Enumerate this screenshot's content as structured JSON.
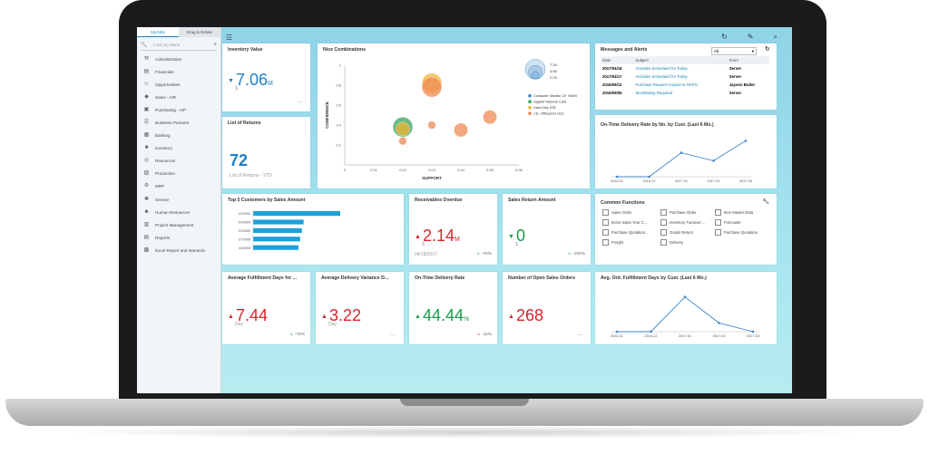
{
  "sidebar": {
    "tabs": [
      "MyJobs",
      "Drag & Relate"
    ],
    "search_placeholder": "Look Up Menu",
    "items": [
      {
        "label": "Administration",
        "icon": "wrench-icon"
      },
      {
        "label": "Financials",
        "icon": "chart-icon"
      },
      {
        "label": "Opportunities",
        "icon": "people-icon"
      },
      {
        "label": "Sales - A/R",
        "icon": "tag-icon"
      },
      {
        "label": "Purchasing - A/P",
        "icon": "cart-icon"
      },
      {
        "label": "Business Partners",
        "icon": "partners-icon"
      },
      {
        "label": "Banking",
        "icon": "bank-icon"
      },
      {
        "label": "Inventory",
        "icon": "box-icon"
      },
      {
        "label": "Resources",
        "icon": "resource-icon"
      },
      {
        "label": "Production",
        "icon": "factory-icon"
      },
      {
        "label": "MRP",
        "icon": "mrp-icon"
      },
      {
        "label": "Service",
        "icon": "service-icon"
      },
      {
        "label": "Human Resources",
        "icon": "hr-icon"
      },
      {
        "label": "Project Management",
        "icon": "project-icon"
      },
      {
        "label": "Reports",
        "icon": "report-icon"
      },
      {
        "label": "Excel Report and Interactiv",
        "icon": "excel-icon"
      }
    ]
  },
  "inventory": {
    "title": "Inventory Value",
    "value": "7.06",
    "unit": "M",
    "currency": "$",
    "dash": "----"
  },
  "returns": {
    "title": "List of Returns",
    "value": "72",
    "sub": "List of Returns - YTD"
  },
  "nice": {
    "title": "Nice Combinations",
    "xlabel": "SUPPORT",
    "ylabel": "CONFIDENCE",
    "size_labels": [
      "7.29",
      "4.65",
      "2.03"
    ],
    "legend": [
      {
        "name": "Computer Monitor 24\" HDMI",
        "color": "#3f86c9"
      },
      {
        "name": "Gigabit Network Card",
        "color": "#3aa35c"
      },
      {
        "name": "Hard Disk 3TB",
        "color": "#f2b234"
      },
      {
        "name": "J.B. Officeprint 1111",
        "color": "#ee8a53"
      }
    ]
  },
  "messages": {
    "title": "Messages and Alerts",
    "filter": "All",
    "headers": [
      "Date",
      "Subject",
      "From"
    ],
    "rows": [
      {
        "date": "2017/04/18",
        "subject": "Activities Scheduled for Today",
        "from": "Server"
      },
      {
        "date": "2017/04/17",
        "subject": "Activities Scheduled for Today",
        "from": "Server"
      },
      {
        "date": "2016/09/12",
        "subject": "Purchase Request Copied to OKPO",
        "from": "Jayson Butler"
      },
      {
        "date": "2016/09/05",
        "subject": "Stocktaking Required",
        "from": "Server"
      }
    ]
  },
  "otd_cust": {
    "title": "On-Time Delivery Rate by No. by Cust. (Last 6 Mo.)"
  },
  "top5": {
    "title": "Top 5 Customers by Sales Amount"
  },
  "receivables": {
    "title": "Receivables Overdue",
    "value": "2.14",
    "unit": "M",
    "currency": "$",
    "date": "04/18/2017",
    "pct": "-76%"
  },
  "sales_return": {
    "title": "Sales Return Amount",
    "value": "0",
    "currency": "$",
    "pct": "-100%"
  },
  "common": {
    "title": "Common Functions",
    "items": [
      "Sales Order",
      "Purchase Order",
      "Item Master Data",
      "Items Sales Year C...",
      "Inventory Turnover ...",
      "Forecasts",
      "Purchase Quotation...",
      "Goods Return",
      "Purchase Quotation",
      "Freight",
      "Delivery"
    ]
  },
  "fulfil": {
    "title": "Average Fulfillment Days for ...",
    "value": "7.44",
    "unit": "Day",
    "pct": "-76%"
  },
  "delay": {
    "title": "Average Delivery Variance D...",
    "value": "3.22",
    "unit": "Day",
    "dash": "----"
  },
  "otd": {
    "title": "On-Time Delivery Rate",
    "value": "44.44",
    "unit": "%",
    "pct": "-11%"
  },
  "open_orders": {
    "title": "Number of Open Sales Orders",
    "value": "268",
    "dash": "----"
  },
  "avg_cust": {
    "title": "Avg. Ord. Fulfillment Days by Cust. (Last 6 Mo.)"
  },
  "chart_data": [
    {
      "type": "scatter",
      "title": "Nice Combinations",
      "xlabel": "SUPPORT",
      "ylabel": "CONFIDENCE",
      "xlim": [
        0,
        0.06
      ],
      "ylim": [
        0,
        1
      ],
      "x_ticks": [
        "0",
        "0.01",
        "0.02",
        "0.03",
        "0.04",
        "0.05",
        "0.06"
      ],
      "y_ticks": [
        "0.2",
        "0.4",
        "0.6",
        "0.8",
        "1"
      ],
      "points": [
        {
          "x": 0.02,
          "y": 0.38,
          "size": 7.29,
          "series": 1
        },
        {
          "x": 0.02,
          "y": 0.36,
          "size": 4.65,
          "series": 2
        },
        {
          "x": 0.02,
          "y": 0.24,
          "size": 2.03,
          "series": 3
        },
        {
          "x": 0.03,
          "y": 0.82,
          "size": 7.29,
          "series": 2
        },
        {
          "x": 0.03,
          "y": 0.78,
          "size": 7.29,
          "series": 3
        },
        {
          "x": 0.03,
          "y": 0.4,
          "size": 2.03,
          "series": 3
        },
        {
          "x": 0.04,
          "y": 0.35,
          "size": 4.65,
          "series": 3
        },
        {
          "x": 0.05,
          "y": 0.48,
          "size": 4.65,
          "series": 3
        }
      ]
    },
    {
      "type": "line",
      "title": "On-Time Delivery Rate by No. by Cust. (Last 6 Mo.)",
      "categories": [
        "2016-11",
        "2016-12",
        "2017-01",
        "2017-02",
        "2017-03"
      ],
      "values": [
        0,
        0,
        0.6,
        0.4,
        0.9
      ],
      "ylim": [
        0,
        1
      ]
    },
    {
      "type": "bar",
      "title": "Top 5 Customers by Sales Amount",
      "categories": [
        "C20000",
        "C40000",
        "C23900",
        "C70000",
        "C30000"
      ],
      "values": [
        100,
        58,
        56,
        54,
        52
      ],
      "xlim": [
        0,
        100
      ]
    },
    {
      "type": "line",
      "title": "Avg. Ord. Fulfillment Days by Cust. (Last 6 Mo.)",
      "categories": [
        "2016-11",
        "2016-12",
        "2017-01",
        "2017-02",
        "2017-03"
      ],
      "values": [
        0,
        0,
        10,
        2.5,
        0
      ],
      "ylim": [
        0,
        12
      ]
    }
  ]
}
